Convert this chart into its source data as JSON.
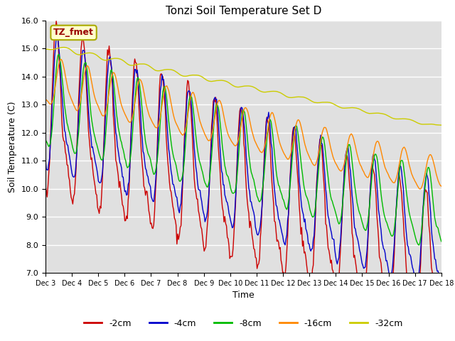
{
  "title": "Tonzi Soil Temperature Set D",
  "xlabel": "Time",
  "ylabel": "Soil Temperature (C)",
  "ylim": [
    7.0,
    16.0
  ],
  "yticks": [
    7.0,
    8.0,
    9.0,
    10.0,
    11.0,
    12.0,
    13.0,
    14.0,
    15.0,
    16.0
  ],
  "xtick_labels": [
    "Dec 3",
    "Dec 4",
    "Dec 5",
    "Dec 6",
    "Dec 7",
    "Dec 8",
    "Dec 9",
    "Dec 10",
    "Dec 11",
    "Dec 12",
    "Dec 13",
    "Dec 14",
    "Dec 15",
    "Dec 16",
    "Dec 17",
    "Dec 18"
  ],
  "legend_label": "TZ_fmet",
  "legend_box_color": "#ffffcc",
  "legend_box_edge": "#aaaa00",
  "legend_text_color": "#990000",
  "series_colors": [
    "#cc0000",
    "#0000cc",
    "#00bb00",
    "#ff8800",
    "#cccc00"
  ],
  "series_labels": [
    "-2cm",
    "-4cm",
    "-8cm",
    "-16cm",
    "-32cm"
  ],
  "plot_bg_color": "#e0e0e0",
  "grid_color": "#ffffff",
  "n_points": 480,
  "n_days": 15
}
